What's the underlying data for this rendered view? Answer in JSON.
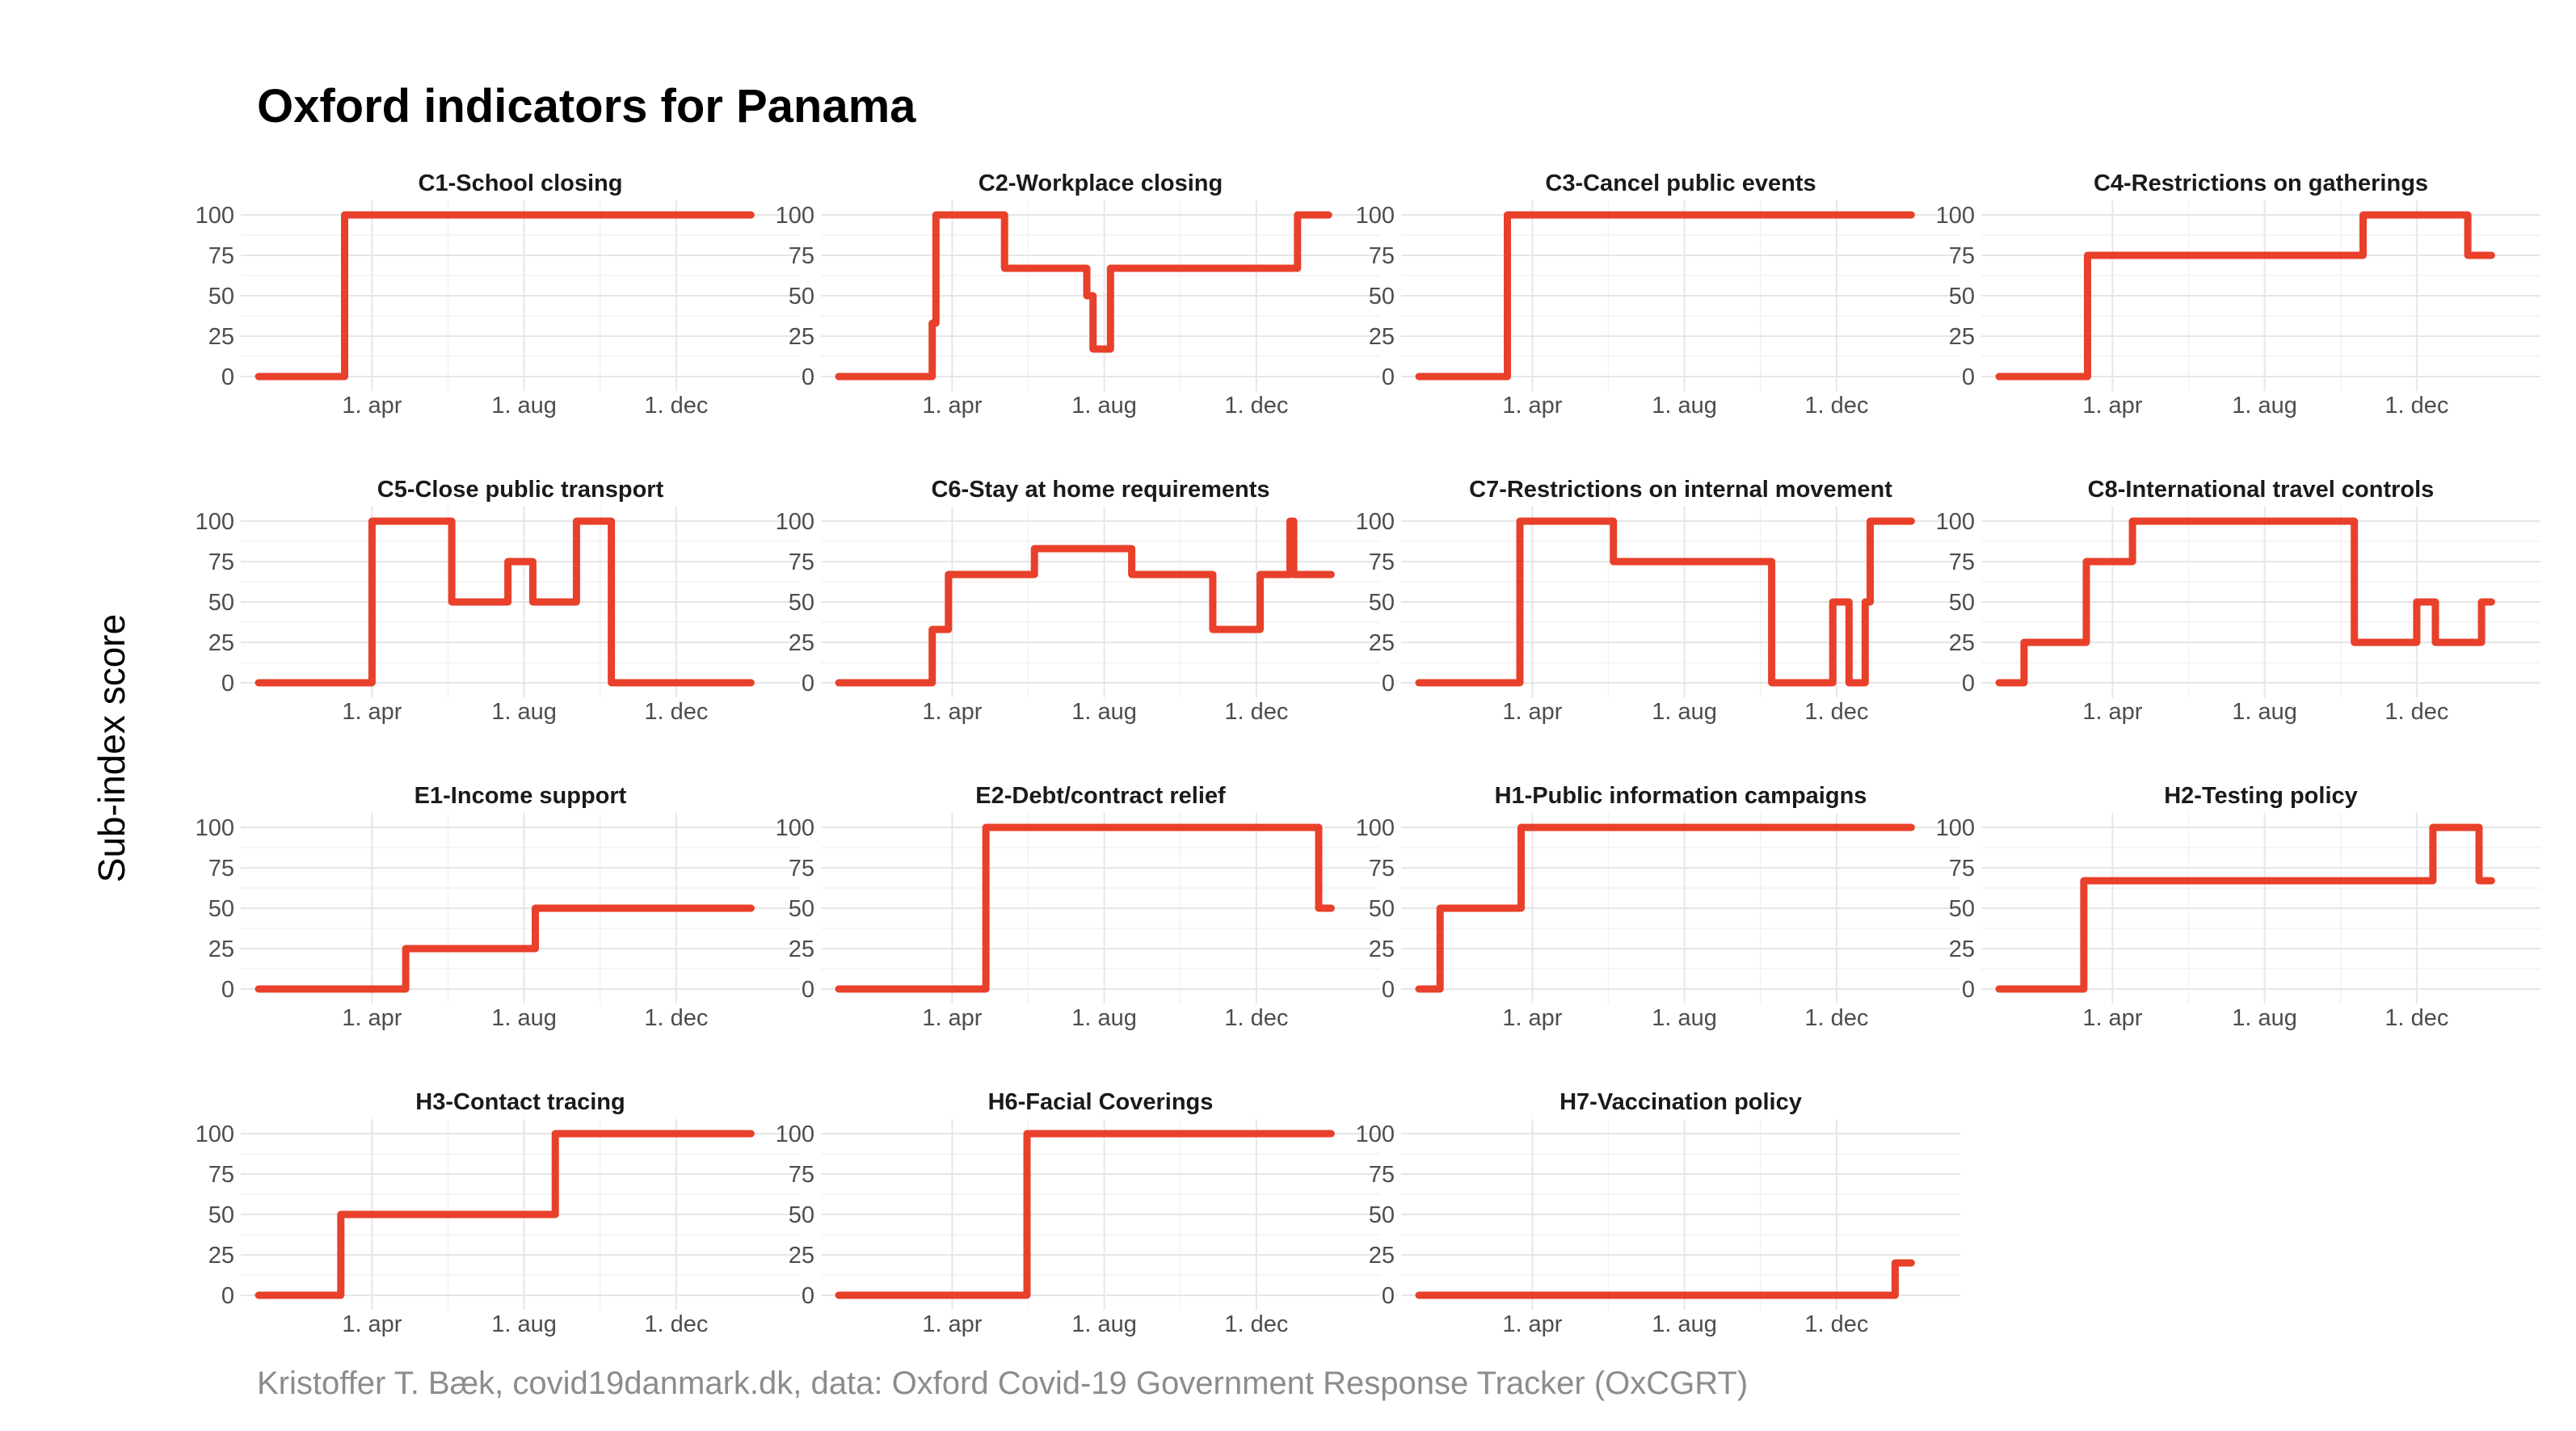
{
  "title": "Oxford indicators for Panama",
  "ylabel": "Sub-index score",
  "caption": "Kristoffer T. Bæk, covid19danmark.dk, data: Oxford Covid-19 Government Response Tracker (OxCGRT)",
  "colors": {
    "line": "#e8402a",
    "grid": "#e6e6e6",
    "caption": "#8c8c8c"
  },
  "chart_data": [
    {
      "type": "line",
      "title": "C1-School closing",
      "ylim": [
        0,
        100
      ],
      "xlim": [
        0,
        420
      ],
      "yticks": [
        0,
        25,
        50,
        75,
        100
      ],
      "xtick_values": [
        91,
        213,
        335
      ],
      "xtick_labels": [
        "1. apr",
        "1. aug",
        "1. dec"
      ],
      "series": [
        {
          "x": [
            0,
            69,
            69,
            395
          ],
          "y": [
            0,
            0,
            100,
            100
          ]
        }
      ]
    },
    {
      "type": "line",
      "title": "C2-Workplace closing",
      "ylim": [
        0,
        100
      ],
      "xlim": [
        0,
        420
      ],
      "yticks": [
        0,
        25,
        50,
        75,
        100
      ],
      "xtick_values": [
        91,
        213,
        335
      ],
      "xtick_labels": [
        "1. apr",
        "1. aug",
        "1. dec"
      ],
      "series": [
        {
          "x": [
            0,
            75,
            75,
            78,
            78,
            133,
            133,
            199,
            199,
            204,
            204,
            218,
            218,
            368,
            368,
            393
          ],
          "y": [
            0,
            0,
            33,
            33,
            100,
            100,
            67,
            67,
            50,
            50,
            17,
            17,
            67,
            67,
            100,
            100
          ]
        }
      ]
    },
    {
      "type": "line",
      "title": "C3-Cancel public events",
      "ylim": [
        0,
        100
      ],
      "xlim": [
        0,
        420
      ],
      "yticks": [
        0,
        25,
        50,
        75,
        100
      ],
      "xtick_values": [
        91,
        213,
        335
      ],
      "xtick_labels": [
        "1. apr",
        "1. aug",
        "1. dec"
      ],
      "series": [
        {
          "x": [
            0,
            71,
            71,
            395
          ],
          "y": [
            0,
            0,
            100,
            100
          ]
        }
      ]
    },
    {
      "type": "line",
      "title": "C4-Restrictions on gatherings",
      "ylim": [
        0,
        100
      ],
      "xlim": [
        0,
        420
      ],
      "yticks": [
        0,
        25,
        50,
        75,
        100
      ],
      "xtick_values": [
        91,
        213,
        335
      ],
      "xtick_labels": [
        "1. apr",
        "1. aug",
        "1. dec"
      ],
      "series": [
        {
          "x": [
            0,
            71,
            71,
            292,
            292,
            376,
            376,
            395
          ],
          "y": [
            0,
            0,
            75,
            75,
            100,
            100,
            75,
            75
          ]
        }
      ]
    },
    {
      "type": "line",
      "title": "C5-Close public transport",
      "ylim": [
        0,
        100
      ],
      "xlim": [
        0,
        420
      ],
      "yticks": [
        0,
        25,
        50,
        75,
        100
      ],
      "xtick_values": [
        91,
        213,
        335
      ],
      "xtick_labels": [
        "1. apr",
        "1. aug",
        "1. dec"
      ],
      "series": [
        {
          "x": [
            0,
            91,
            91,
            155,
            155,
            200,
            200,
            220,
            220,
            255,
            255,
            283,
            283,
            395
          ],
          "y": [
            0,
            0,
            100,
            100,
            50,
            50,
            75,
            75,
            50,
            50,
            100,
            100,
            0,
            0
          ]
        }
      ]
    },
    {
      "type": "line",
      "title": "C6-Stay at home requirements",
      "ylim": [
        0,
        100
      ],
      "xlim": [
        0,
        420
      ],
      "yticks": [
        0,
        25,
        50,
        75,
        100
      ],
      "xtick_values": [
        91,
        213,
        335
      ],
      "xtick_labels": [
        "1. apr",
        "1. aug",
        "1. dec"
      ],
      "series": [
        {
          "x": [
            0,
            75,
            75,
            88,
            88,
            157,
            157,
            235,
            235,
            300,
            300,
            338,
            338,
            362,
            362,
            365,
            365,
            395
          ],
          "y": [
            0,
            0,
            33,
            33,
            67,
            67,
            83,
            83,
            67,
            67,
            33,
            33,
            67,
            67,
            100,
            100,
            67,
            67
          ]
        }
      ]
    },
    {
      "type": "line",
      "title": "C7-Restrictions on internal movement",
      "ylim": [
        0,
        100
      ],
      "xlim": [
        0,
        420
      ],
      "yticks": [
        0,
        25,
        50,
        75,
        100
      ],
      "xtick_values": [
        91,
        213,
        335
      ],
      "xtick_labels": [
        "1. apr",
        "1. aug",
        "1. dec"
      ],
      "series": [
        {
          "x": [
            0,
            81,
            81,
            156,
            156,
            283,
            283,
            332,
            332,
            345,
            345,
            358,
            358,
            362,
            362,
            395
          ],
          "y": [
            0,
            0,
            100,
            100,
            75,
            75,
            0,
            0,
            50,
            50,
            0,
            0,
            50,
            50,
            100,
            100
          ]
        }
      ]
    },
    {
      "type": "line",
      "title": "C8-International travel controls",
      "ylim": [
        0,
        100
      ],
      "xlim": [
        0,
        420
      ],
      "yticks": [
        0,
        25,
        50,
        75,
        100
      ],
      "xtick_values": [
        91,
        213,
        335
      ],
      "xtick_labels": [
        "1. apr",
        "1. aug",
        "1. dec"
      ],
      "series": [
        {
          "x": [
            0,
            20,
            20,
            70,
            70,
            107,
            107,
            285,
            285,
            335,
            335,
            350,
            350,
            387,
            387,
            395
          ],
          "y": [
            0,
            0,
            25,
            25,
            75,
            75,
            100,
            100,
            25,
            25,
            50,
            50,
            25,
            25,
            50,
            50
          ]
        }
      ]
    },
    {
      "type": "line",
      "title": "E1-Income support",
      "ylim": [
        0,
        100
      ],
      "xlim": [
        0,
        420
      ],
      "yticks": [
        0,
        25,
        50,
        75,
        100
      ],
      "xtick_values": [
        91,
        213,
        335
      ],
      "xtick_labels": [
        "1. apr",
        "1. aug",
        "1. dec"
      ],
      "series": [
        {
          "x": [
            0,
            118,
            118,
            222,
            222,
            395
          ],
          "y": [
            0,
            0,
            25,
            25,
            50,
            50
          ]
        }
      ]
    },
    {
      "type": "line",
      "title": "E2-Debt/contract relief",
      "ylim": [
        0,
        100
      ],
      "xlim": [
        0,
        420
      ],
      "yticks": [
        0,
        25,
        50,
        75,
        100
      ],
      "xtick_values": [
        91,
        213,
        335
      ],
      "xtick_labels": [
        "1. apr",
        "1. aug",
        "1. dec"
      ],
      "series": [
        {
          "x": [
            0,
            118,
            118,
            385,
            385,
            395
          ],
          "y": [
            0,
            0,
            100,
            100,
            50,
            50
          ]
        }
      ]
    },
    {
      "type": "line",
      "title": "H1-Public information campaigns",
      "ylim": [
        0,
        100
      ],
      "xlim": [
        0,
        420
      ],
      "yticks": [
        0,
        25,
        50,
        75,
        100
      ],
      "xtick_values": [
        91,
        213,
        335
      ],
      "xtick_labels": [
        "1. apr",
        "1. aug",
        "1. dec"
      ],
      "series": [
        {
          "x": [
            0,
            17,
            17,
            82,
            82,
            395
          ],
          "y": [
            0,
            0,
            50,
            50,
            100,
            100
          ]
        }
      ]
    },
    {
      "type": "line",
      "title": "H2-Testing policy",
      "ylim": [
        0,
        100
      ],
      "xlim": [
        0,
        420
      ],
      "yticks": [
        0,
        25,
        50,
        75,
        100
      ],
      "xtick_values": [
        91,
        213,
        335
      ],
      "xtick_labels": [
        "1. apr",
        "1. aug",
        "1. dec"
      ],
      "series": [
        {
          "x": [
            0,
            68,
            68,
            348,
            348,
            385,
            385,
            395
          ],
          "y": [
            0,
            0,
            67,
            67,
            100,
            100,
            67,
            67
          ]
        }
      ]
    },
    {
      "type": "line",
      "title": "H3-Contact tracing",
      "ylim": [
        0,
        100
      ],
      "xlim": [
        0,
        420
      ],
      "yticks": [
        0,
        25,
        50,
        75,
        100
      ],
      "xtick_values": [
        91,
        213,
        335
      ],
      "xtick_labels": [
        "1. apr",
        "1. aug",
        "1. dec"
      ],
      "series": [
        {
          "x": [
            0,
            66,
            66,
            238,
            238,
            395
          ],
          "y": [
            0,
            0,
            50,
            50,
            100,
            100
          ]
        }
      ]
    },
    {
      "type": "line",
      "title": "H6-Facial Coverings",
      "ylim": [
        0,
        100
      ],
      "xlim": [
        0,
        420
      ],
      "yticks": [
        0,
        25,
        50,
        75,
        100
      ],
      "xtick_values": [
        91,
        213,
        335
      ],
      "xtick_labels": [
        "1. apr",
        "1. aug",
        "1. dec"
      ],
      "series": [
        {
          "x": [
            0,
            151,
            151,
            395
          ],
          "y": [
            0,
            0,
            100,
            100
          ]
        }
      ]
    },
    {
      "type": "line",
      "title": "H7-Vaccination policy",
      "ylim": [
        0,
        100
      ],
      "xlim": [
        0,
        420
      ],
      "yticks": [
        0,
        25,
        50,
        75,
        100
      ],
      "xtick_values": [
        91,
        213,
        335
      ],
      "xtick_labels": [
        "1. apr",
        "1. aug",
        "1. dec"
      ],
      "series": [
        {
          "x": [
            0,
            382,
            382,
            395
          ],
          "y": [
            0,
            0,
            20,
            20
          ]
        }
      ]
    }
  ]
}
